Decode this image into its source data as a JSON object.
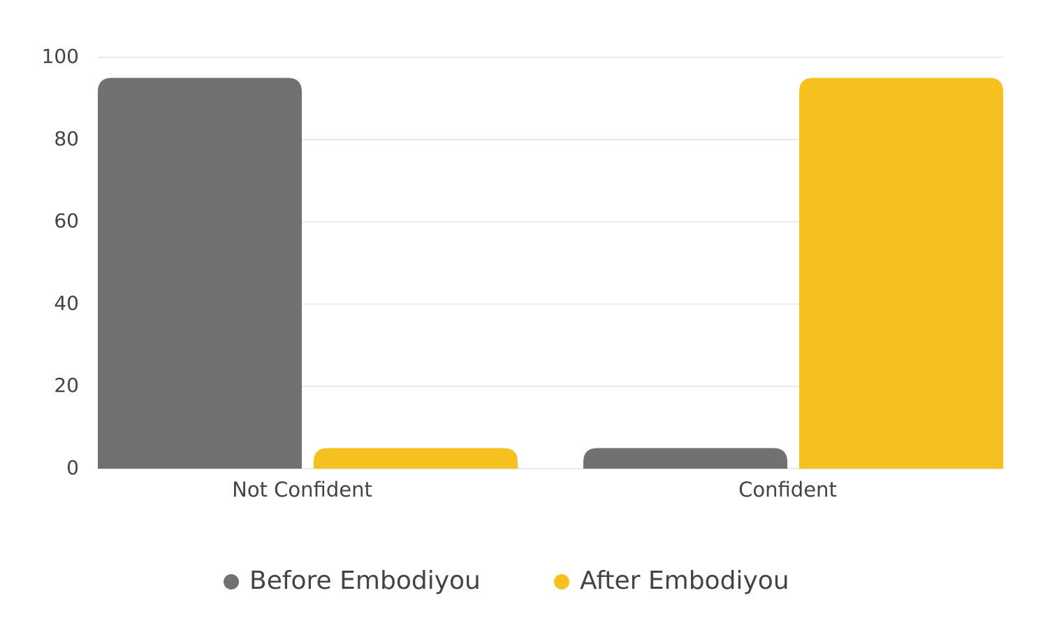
{
  "chart_data": {
    "type": "bar",
    "categories": [
      "Not Confident",
      "Confident"
    ],
    "series": [
      {
        "name": "Before Embodiyou",
        "color": "#717171",
        "values": [
          95,
          5
        ]
      },
      {
        "name": "After Embodiyou",
        "color": "#f6c01e",
        "values": [
          5,
          95
        ]
      }
    ],
    "ylim": [
      0,
      100
    ],
    "yticks": [
      0,
      20,
      40,
      60,
      80,
      100
    ],
    "grid": true,
    "legend": "bottom"
  }
}
